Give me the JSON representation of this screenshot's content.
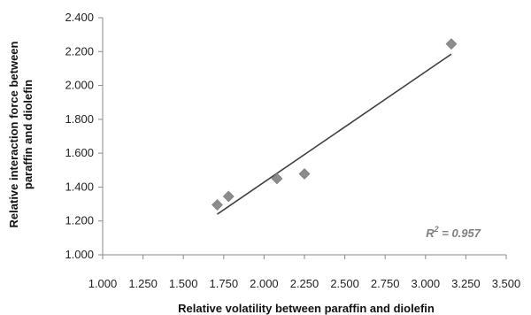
{
  "chart_data": {
    "type": "scatter",
    "title": "",
    "xlabel": "Relative volatility between paraffin and diolefin",
    "ylabel_lines": [
      "Relative interaction force between",
      "paraffin and diolefin"
    ],
    "xlim": [
      1.0,
      3.5
    ],
    "ylim": [
      1.0,
      2.4
    ],
    "x_ticks": [
      "1.000",
      "1.250",
      "1.500",
      "1.750",
      "2.000",
      "2.250",
      "2.500",
      "2.750",
      "3.000",
      "3.250",
      "3.500"
    ],
    "y_ticks": [
      "1.000",
      "1.200",
      "1.400",
      "1.600",
      "1.800",
      "2.000",
      "2.200",
      "2.400"
    ],
    "points": [
      {
        "x": 1.71,
        "y": 1.295
      },
      {
        "x": 1.78,
        "y": 1.345
      },
      {
        "x": 2.08,
        "y": 1.45
      },
      {
        "x": 2.25,
        "y": 1.478
      },
      {
        "x": 3.16,
        "y": 2.245
      }
    ],
    "trendline": {
      "x": [
        1.71,
        3.16
      ],
      "y": [
        1.24,
        2.185
      ]
    },
    "annotation": {
      "r2_prefix": "R",
      "r2_sup": "2",
      "r2_value": " = 0.957"
    },
    "grid": false,
    "legend": "none",
    "colors": {
      "marker": "#8c8c8c",
      "trendline": "#404040",
      "axis": "#888888",
      "text": "#222222"
    }
  }
}
